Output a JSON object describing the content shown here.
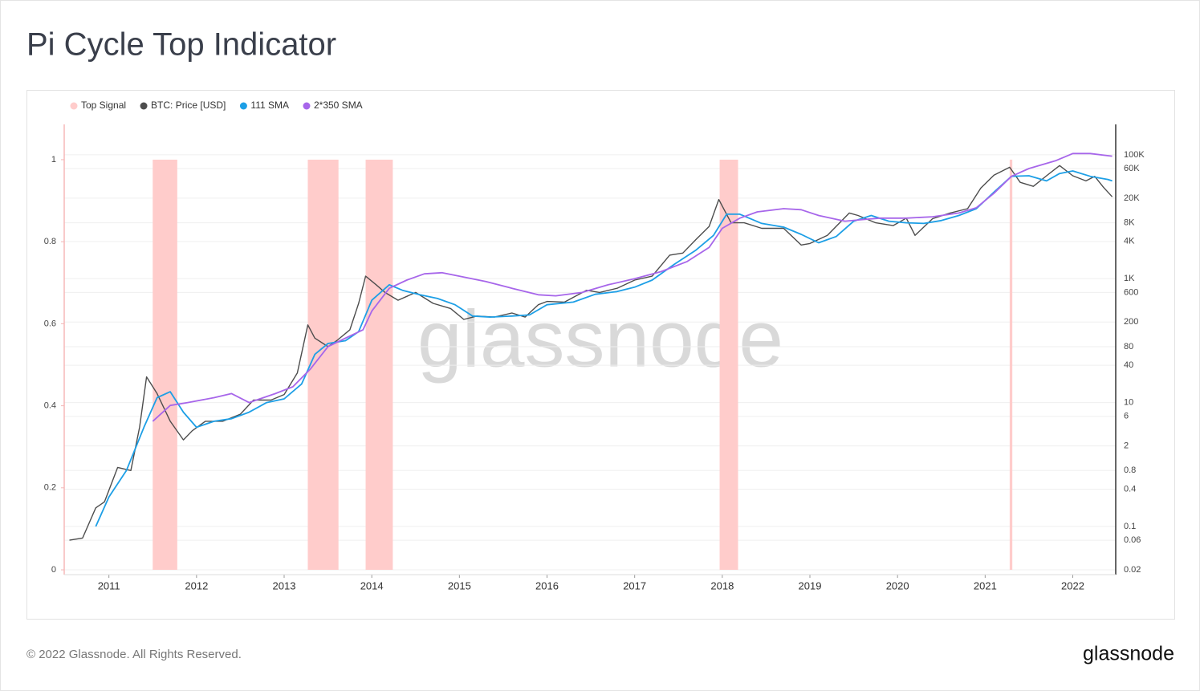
{
  "chart_data": {
    "type": "line",
    "title": "Pi Cycle Top Indicator",
    "xlim": [
      2010.49,
      2022.49
    ],
    "xticks": [
      2011,
      2012,
      2013,
      2014,
      2015,
      2016,
      2017,
      2018,
      2019,
      2020,
      2021,
      2022
    ],
    "ylim": [
      -0.0117,
      1.086
    ],
    "yticks": [
      0,
      0.2,
      0.4,
      0.6,
      0.8,
      1
    ],
    "y2lim": [
      0.0167,
      310000
    ],
    "y2scale": "log",
    "y2ticks": [
      0.02,
      0.06,
      0.1,
      0.4,
      0.8,
      2,
      6,
      10,
      40,
      80,
      200,
      600,
      {
        "value": 1000,
        "label": "1K"
      },
      {
        "value": 4000,
        "label": "4K"
      },
      {
        "value": 8000,
        "label": "8K"
      },
      {
        "value": 20000,
        "label": "20K"
      },
      {
        "value": 60000,
        "label": "60K"
      },
      {
        "value": 100000,
        "label": "100K"
      }
    ],
    "grid": true,
    "series": [
      {
        "name": "Top Signal",
        "type": "band",
        "color": "#ffcccb",
        "x_start": [
          2011.5,
          2013.27,
          2013.93,
          2017.97,
          2021.28
        ],
        "x_end": [
          2011.78,
          2013.62,
          2014.24,
          2018.18,
          2021.31
        ],
        "values": [
          1,
          1,
          1,
          1,
          1
        ]
      },
      {
        "name": "BTC: Price [USD]",
        "axis": "y2",
        "color": "#4d4d4d",
        "x": [
          2010.55,
          2010.7,
          2010.85,
          2010.95,
          2011.1,
          2011.25,
          2011.35,
          2011.43,
          2011.55,
          2011.7,
          2011.85,
          2011.95,
          2012.1,
          2012.3,
          2012.5,
          2012.65,
          2012.85,
          2013.0,
          2013.15,
          2013.27,
          2013.35,
          2013.5,
          2013.6,
          2013.75,
          2013.85,
          2013.93,
          2014.05,
          2014.15,
          2014.3,
          2014.5,
          2014.7,
          2014.9,
          2015.05,
          2015.2,
          2015.4,
          2015.6,
          2015.75,
          2015.9,
          2016.0,
          2016.2,
          2016.45,
          2016.6,
          2016.8,
          2017.0,
          2017.2,
          2017.4,
          2017.55,
          2017.7,
          2017.85,
          2017.96,
          2018.1,
          2018.25,
          2018.45,
          2018.7,
          2018.9,
          2019.0,
          2019.2,
          2019.45,
          2019.55,
          2019.75,
          2019.95,
          2020.1,
          2020.2,
          2020.4,
          2020.6,
          2020.8,
          2020.95,
          2021.1,
          2021.28,
          2021.4,
          2021.55,
          2021.7,
          2021.85,
          2022.0,
          2022.15,
          2022.25,
          2022.35,
          2022.45
        ],
        "values": [
          0.06,
          0.065,
          0.2,
          0.25,
          0.9,
          0.8,
          4,
          26,
          14,
          5,
          2.5,
          3.5,
          5,
          5,
          6.5,
          11,
          11,
          13.5,
          30,
          180,
          110,
          80,
          100,
          150,
          400,
          1100,
          800,
          600,
          450,
          600,
          400,
          330,
          220,
          250,
          240,
          280,
          240,
          380,
          430,
          420,
          650,
          600,
          700,
          950,
          1100,
          2400,
          2600,
          4300,
          7000,
          19000,
          8000,
          8000,
          6500,
          6500,
          3500,
          3700,
          5000,
          11500,
          10500,
          8000,
          7200,
          9500,
          5000,
          9300,
          11500,
          13500,
          29000,
          47000,
          63000,
          36000,
          31000,
          46000,
          67000,
          46000,
          38000,
          45000,
          30000,
          21000
        ]
      },
      {
        "name": "111 SMA",
        "axis": "y2",
        "color": "#1d9fe6",
        "x": [
          2010.85,
          2011.0,
          2011.2,
          2011.4,
          2011.55,
          2011.7,
          2011.85,
          2012.0,
          2012.2,
          2012.4,
          2012.6,
          2012.8,
          2013.0,
          2013.2,
          2013.35,
          2013.5,
          2013.7,
          2013.85,
          2014.0,
          2014.2,
          2014.35,
          2014.55,
          2014.75,
          2014.95,
          2015.15,
          2015.35,
          2015.6,
          2015.8,
          2016.0,
          2016.3,
          2016.55,
          2016.8,
          2017.0,
          2017.2,
          2017.45,
          2017.7,
          2017.9,
          2018.05,
          2018.2,
          2018.45,
          2018.7,
          2018.9,
          2019.1,
          2019.3,
          2019.5,
          2019.7,
          2019.9,
          2020.1,
          2020.3,
          2020.5,
          2020.7,
          2020.9,
          2021.1,
          2021.3,
          2021.5,
          2021.7,
          2021.85,
          2022.0,
          2022.2,
          2022.4,
          2022.45
        ],
        "values": [
          0.1,
          0.3,
          0.8,
          4,
          12,
          15,
          7,
          4,
          5,
          5.5,
          7,
          10,
          11.5,
          20,
          60,
          90,
          100,
          140,
          450,
          800,
          650,
          550,
          480,
          380,
          250,
          240,
          250,
          260,
          380,
          420,
          560,
          620,
          730,
          950,
          1700,
          2900,
          5000,
          11000,
          11000,
          7800,
          6800,
          5200,
          3800,
          4800,
          8500,
          10500,
          8500,
          8000,
          7800,
          8700,
          10500,
          13500,
          25000,
          45000,
          46000,
          38000,
          50000,
          55000,
          45000,
          40000,
          38000
        ]
      },
      {
        "name": "2*350 SMA",
        "axis": "y2",
        "color": "#a766ea",
        "x": [
          2011.5,
          2011.7,
          2011.9,
          2012.2,
          2012.4,
          2012.6,
          2012.9,
          2013.1,
          2013.3,
          2013.5,
          2013.7,
          2013.9,
          2014.0,
          2014.2,
          2014.4,
          2014.6,
          2014.8,
          2015.0,
          2015.3,
          2015.6,
          2015.9,
          2016.1,
          2016.4,
          2016.7,
          2017.0,
          2017.3,
          2017.6,
          2017.85,
          2018.0,
          2018.2,
          2018.4,
          2018.7,
          2018.9,
          2019.1,
          2019.4,
          2019.6,
          2019.8,
          2020.1,
          2020.4,
          2020.7,
          2020.9,
          2021.1,
          2021.3,
          2021.5,
          2021.8,
          2022.0,
          2022.2,
          2022.45
        ],
        "values": [
          5,
          9,
          10,
          12,
          14,
          10,
          14,
          18,
          35,
          80,
          110,
          150,
          300,
          700,
          950,
          1200,
          1250,
          1100,
          900,
          700,
          550,
          530,
          600,
          800,
          1000,
          1300,
          1900,
          3200,
          6500,
          9500,
          12000,
          13500,
          13000,
          10500,
          8500,
          9000,
          9500,
          9500,
          10000,
          11500,
          14000,
          24000,
          45000,
          60000,
          80000,
          105000,
          105000,
          95000
        ]
      }
    ]
  },
  "watermark": "glassnode",
  "copyright": "© 2022 Glassnode. All Rights Reserved.",
  "brand": "glassnode"
}
